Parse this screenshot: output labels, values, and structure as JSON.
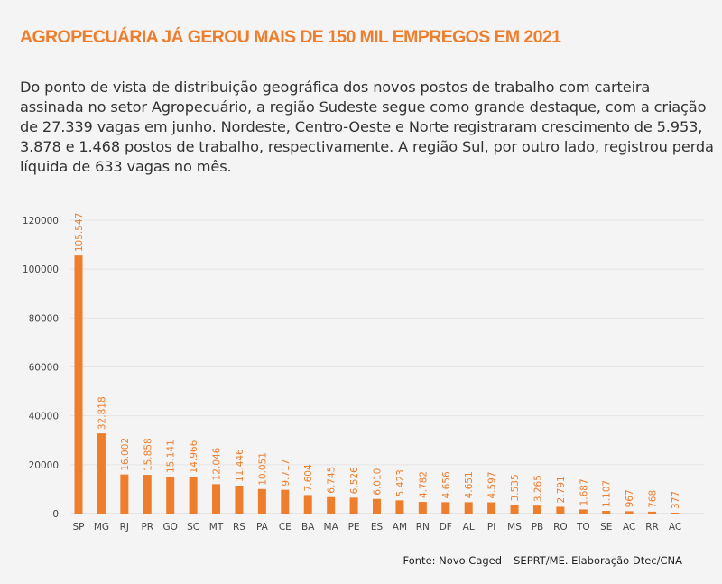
{
  "header": {
    "title": "AGROPECUÁRIA JÁ GEROU MAIS DE 150 MIL EMPREGOS EM 2021",
    "paragraph": "Do ponto de vista de distribuição geográfica dos novos postos de trabalho com carteira assinada no setor Agropecuário, a região Sudeste segue como grande destaque, com a criação de 27.339 vagas em junho. Nordeste, Centro-Oeste e Norte registraram crescimento de 5.953, 3.878 e 1.468 postos de trabalho, respectivamente. A região Sul, por outro lado, registrou perda líquida de 633 vagas no mês."
  },
  "source": "Fonte: Novo Caged – SEPRT/ME. Elaboração Dtec/CNA",
  "colors": {
    "accent": "#ee7d2c",
    "text": "#333333",
    "background": "#f4f4f4"
  },
  "chart_data": {
    "type": "bar",
    "categories": [
      "SP",
      "MG",
      "RJ",
      "PR",
      "GO",
      "SC",
      "MT",
      "RS",
      "PA",
      "CE",
      "BA",
      "MA",
      "PE",
      "ES",
      "AM",
      "RN",
      "DF",
      "AL",
      "PI",
      "MS",
      "PB",
      "RO",
      "TO",
      "SE",
      "AC",
      "RR",
      "AC"
    ],
    "values": [
      105547,
      32818,
      16002,
      15858,
      15141,
      14966,
      12046,
      11446,
      10051,
      9717,
      7604,
      6745,
      6526,
      6010,
      5423,
      4782,
      4656,
      4651,
      4597,
      3535,
      3265,
      2791,
      1687,
      1107,
      967,
      768,
      377
    ],
    "data_labels": [
      "105.547",
      "32.818",
      "16.002",
      "15.858",
      "15.141",
      "14.966",
      "12.046",
      "11.446",
      "10.051",
      "9.717",
      "7.604",
      "6.745",
      "6.526",
      "6.010",
      "5.423",
      "4.782",
      "4.656",
      "4.651",
      "4.597",
      "3.535",
      "3.265",
      "2.791",
      "1.687",
      "1.107",
      "967",
      "768",
      "377"
    ],
    "yticks": [
      "0",
      "20000",
      "40000",
      "60000",
      "80000",
      "100000",
      "120000"
    ],
    "ylim": [
      0,
      120000
    ],
    "grid": true,
    "title": "",
    "xlabel": "",
    "ylabel": ""
  }
}
